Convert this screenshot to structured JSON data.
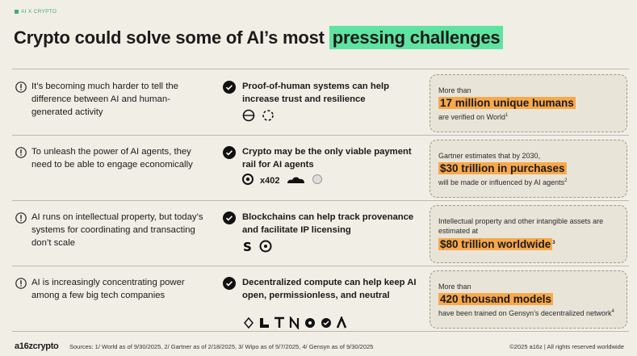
{
  "header": {
    "tag": "AI X CRYPTO",
    "title": "Crypto could solve some of AI’s most",
    "title_highlight": "pressing challenges"
  },
  "rows": [
    {
      "problem": "It’s becoming much harder to tell the difference between AI and human-generated activity",
      "solution": "Proof-of-human systems can help increase trust and resilience",
      "stat": {
        "pre": "More than",
        "big": "17 million unique humans",
        "post": "are verified on World",
        "post_note": "1"
      }
    },
    {
      "problem": "To unleash the power of AI agents, they need to be able to engage economically",
      "solution": "Crypto may be the only viable payment rail for AI agents",
      "logo_text": "x402",
      "stat": {
        "pre": "Gartner estimates that by 2030,",
        "big": "$30 trillion in purchases",
        "post": "will be made or influenced by AI agents",
        "post_note": "2"
      }
    },
    {
      "problem": "AI runs on intellectual property, but today’s systems for coordinating and transacting don’t scale",
      "solution": "Blockchains can help track provenance and facilitate IP licensing",
      "stat": {
        "pre": "Intellectual property and other intangible assets are estimated at",
        "big": "$80 trillion worldwide",
        "big_note": "3"
      }
    },
    {
      "problem": "AI is increasingly concentrating power among a few big tech companies",
      "solution": "Decentralized compute can help keep AI open, permissionless, and neutral",
      "stat": {
        "pre": "More than",
        "big": "420 thousand models",
        "post": "have been trained on Gensyn’s decentralized network",
        "post_note": "4"
      }
    }
  ],
  "footer": {
    "brand": "a16zcrypto",
    "sources": "Sources: 1/ World as of 9/30/2025, 2/ Gartner as of 2/18/2025, 3/ Wipo as of 5/7/2025, 4/ Gensyn as of 9/30/2025",
    "copyright": "©2025 a16z | All rights reserved worldwide"
  }
}
